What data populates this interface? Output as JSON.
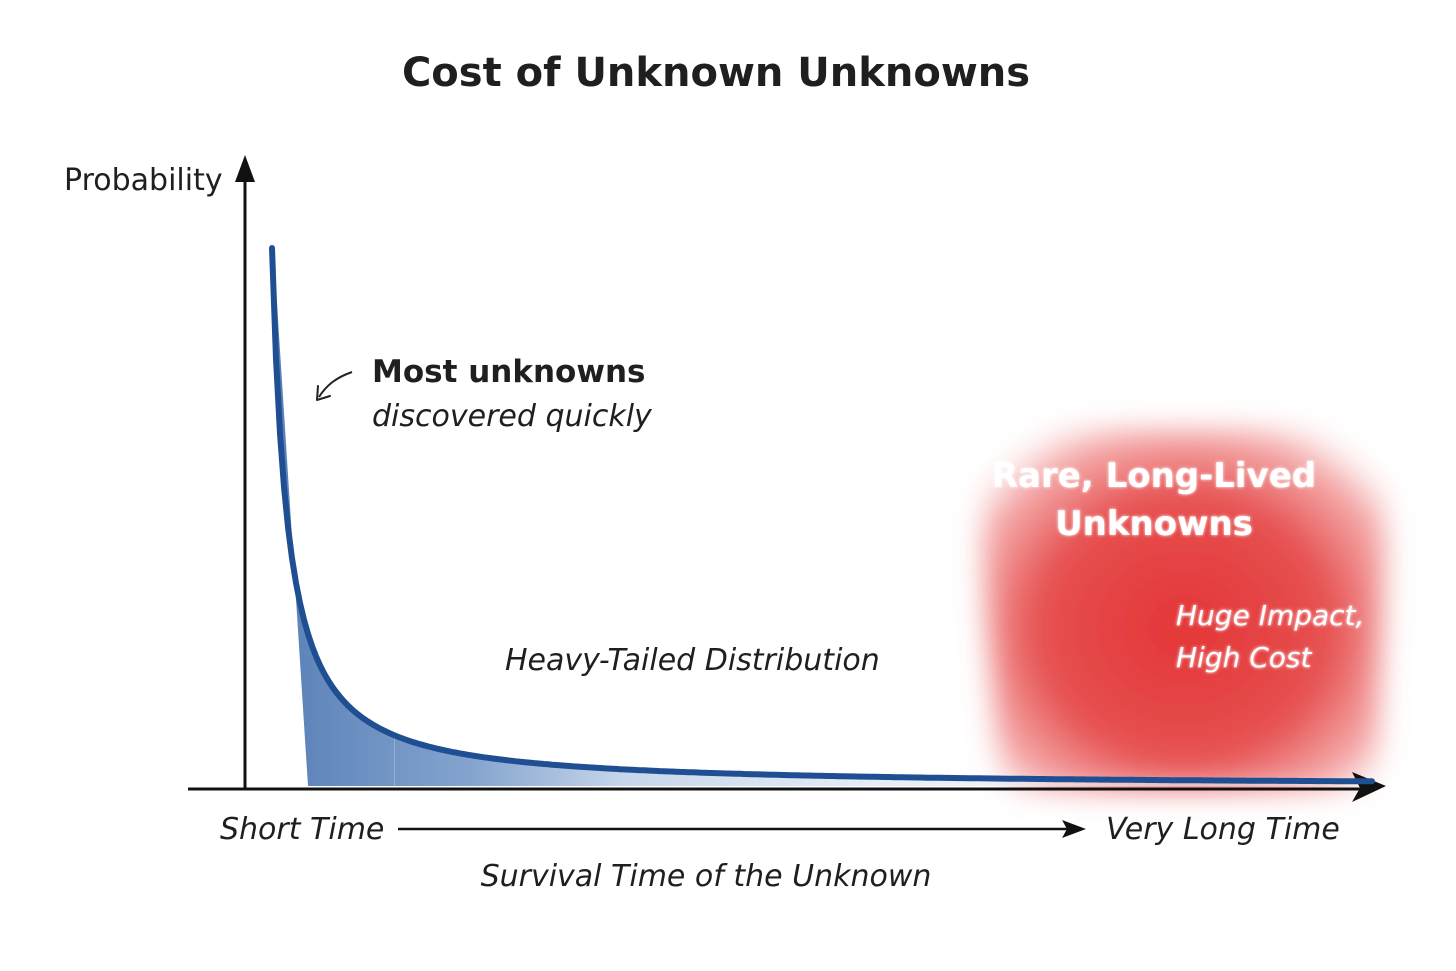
{
  "title": "Cost of Unknown Unknowns",
  "y_axis_label": "Probability",
  "x_axis": {
    "left_label": "Short Time",
    "right_label": "Very Long Time",
    "caption": "Survival Time of the Unknown"
  },
  "annotations": {
    "head_bold": "Most unknowns",
    "head_italic": "discovered quickly",
    "middle_label": "Heavy-Tailed Distribution"
  },
  "tail_region": {
    "title_line1": "Rare, Long-Lived",
    "title_line2": "Unknowns",
    "sub_line1": "Huge Impact,",
    "sub_line2": "High Cost"
  },
  "colors": {
    "curve": "#1f4f92",
    "fill_dark": "#5e86bd",
    "fill_mid": "#9bb6da",
    "fill_light": "#d8e3f1",
    "fill_lightest": "#eef3f9",
    "tail_red": "#e53c3c",
    "axis": "#111111"
  },
  "icons": {
    "y_axis_arrowhead": "arrow-up-icon",
    "x_axis_arrowhead": "arrow-right-icon",
    "time_arrow": "long-arrow-right-icon",
    "pointer_arrow": "curved-arrow-icon"
  }
}
